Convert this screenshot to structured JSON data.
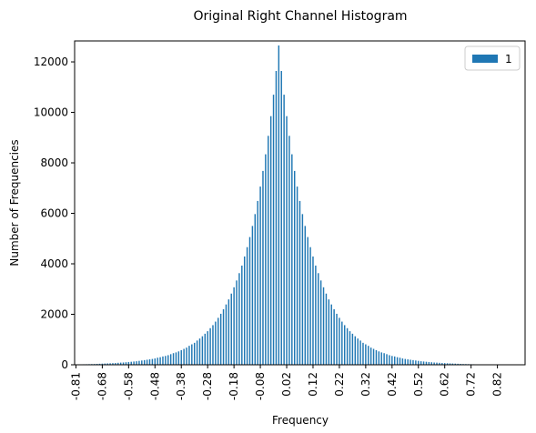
{
  "chart_data": {
    "type": "bar",
    "title": "Original Right Channel Histogram",
    "xlabel": "Frequency",
    "ylabel": "Number of Frequencies",
    "categories": [
      "-0.81",
      null,
      null,
      null,
      null,
      null,
      null,
      null,
      null,
      null,
      "-0.68",
      null,
      null,
      null,
      null,
      null,
      null,
      null,
      null,
      null,
      "-0.58",
      null,
      null,
      null,
      null,
      null,
      null,
      null,
      null,
      null,
      "-0.48",
      null,
      null,
      null,
      null,
      null,
      null,
      null,
      null,
      null,
      "-0.38",
      null,
      null,
      null,
      null,
      null,
      null,
      null,
      null,
      null,
      "-0.28",
      null,
      null,
      null,
      null,
      null,
      null,
      null,
      null,
      null,
      "-0.18",
      null,
      null,
      null,
      null,
      null,
      null,
      null,
      null,
      null,
      "-0.08",
      null,
      null,
      null,
      null,
      null,
      null,
      null,
      null,
      null,
      "0.02",
      null,
      null,
      null,
      null,
      null,
      null,
      null,
      null,
      null,
      "0.12",
      null,
      null,
      null,
      null,
      null,
      null,
      null,
      null,
      null,
      "0.22",
      null,
      null,
      null,
      null,
      null,
      null,
      null,
      null,
      null,
      "0.32",
      null,
      null,
      null,
      null,
      null,
      null,
      null,
      null,
      null,
      "0.42",
      null,
      null,
      null,
      null,
      null,
      null,
      null,
      null,
      null,
      "0.52",
      null,
      null,
      null,
      null,
      null,
      null,
      null,
      null,
      null,
      "0.62",
      null,
      null,
      null,
      null,
      null,
      null,
      null,
      null,
      null,
      "0.72",
      null,
      null,
      null,
      null,
      null,
      null,
      null,
      null,
      null,
      "0.82",
      null,
      null,
      null,
      null,
      null,
      null,
      null,
      null,
      null,
      null
    ],
    "series": [
      {
        "name": "1",
        "color": "#1f77b4",
        "values": [
          14,
          16,
          18,
          20,
          22,
          25,
          28,
          30,
          35,
          40,
          45,
          50,
          55,
          60,
          65,
          70,
          78,
          85,
          90,
          100,
          110,
          120,
          130,
          140,
          155,
          170,
          185,
          200,
          215,
          230,
          250,
          280,
          300,
          330,
          350,
          380,
          420,
          460,
          490,
          530,
          580,
          630,
          680,
          750,
          810,
          870,
          960,
          1040,
          1130,
          1230,
          1330,
          1450,
          1570,
          1710,
          1860,
          2020,
          2200,
          2390,
          2590,
          2820,
          3070,
          3340,
          3630,
          3930,
          4290,
          4660,
          5060,
          5500,
          5970,
          6490,
          7060,
          7680,
          8340,
          9070,
          9850,
          10700,
          11640,
          12650,
          11640,
          10700,
          9850,
          9070,
          8340,
          7680,
          7060,
          6490,
          5970,
          5500,
          5060,
          4660,
          4290,
          3930,
          3630,
          3340,
          3070,
          2820,
          2590,
          2390,
          2200,
          2020,
          1860,
          1710,
          1570,
          1450,
          1330,
          1230,
          1130,
          1040,
          960,
          870,
          810,
          750,
          680,
          630,
          580,
          530,
          490,
          460,
          420,
          380,
          350,
          330,
          300,
          280,
          250,
          230,
          215,
          200,
          185,
          170,
          155,
          140,
          130,
          120,
          110,
          100,
          90,
          85,
          78,
          70,
          65,
          60,
          55,
          50,
          45,
          40,
          35,
          30,
          28,
          25,
          22,
          20,
          18,
          16,
          14,
          12,
          11,
          10,
          9,
          8,
          7,
          6,
          5,
          5,
          4,
          4,
          3,
          3,
          2,
          2,
          1
        ]
      }
    ],
    "ylim": [
      0,
      12830
    ],
    "yticks": [
      0,
      2000,
      4000,
      6000,
      8000,
      10000,
      12000
    ],
    "legend": "upper right"
  }
}
